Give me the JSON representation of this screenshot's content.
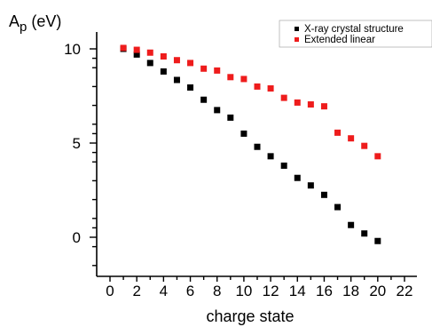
{
  "chart_data": {
    "type": "scatter",
    "ylabel_main": "A",
    "ylabel_sub": "p",
    "ylabel_unit": " (eV)",
    "xlabel": "charge state",
    "xlim": [
      -1,
      22
    ],
    "ylim": [
      -1.8,
      10.9
    ],
    "x_ticks": [
      0,
      2,
      4,
      6,
      8,
      10,
      12,
      14,
      16,
      18,
      20,
      22
    ],
    "y_ticks": [
      0,
      5,
      10
    ],
    "y_minor_ticks": [
      -1.5,
      -0.5,
      0.5,
      1.0,
      2.0,
      3.0,
      4.0,
      4.5,
      5.5,
      6.0,
      7.0,
      8.0,
      9.0,
      9.5
    ],
    "legend_position": "top-right",
    "series": [
      {
        "name": "X-ray crystal structure",
        "color": "#000000",
        "x": [
          1,
          2,
          3,
          4,
          5,
          6,
          7,
          8,
          9,
          10,
          11,
          12,
          13,
          14,
          15,
          16,
          17,
          18,
          19,
          20
        ],
        "y": [
          10.0,
          9.7,
          9.25,
          8.8,
          8.35,
          7.95,
          7.3,
          6.75,
          6.35,
          5.5,
          4.8,
          4.3,
          3.8,
          3.15,
          2.75,
          2.25,
          1.6,
          0.65,
          0.2,
          -0.2
        ]
      },
      {
        "name": "Extended linear",
        "color": "#ee1c1c",
        "x": [
          1,
          2,
          3,
          4,
          5,
          6,
          7,
          8,
          9,
          10,
          11,
          12,
          13,
          14,
          15,
          16,
          17,
          18,
          19,
          20
        ],
        "y": [
          10.05,
          9.95,
          9.8,
          9.6,
          9.4,
          9.25,
          8.95,
          8.85,
          8.5,
          8.4,
          8.0,
          7.9,
          7.4,
          7.15,
          7.05,
          6.95,
          5.55,
          5.25,
          4.85,
          4.3
        ]
      }
    ]
  }
}
